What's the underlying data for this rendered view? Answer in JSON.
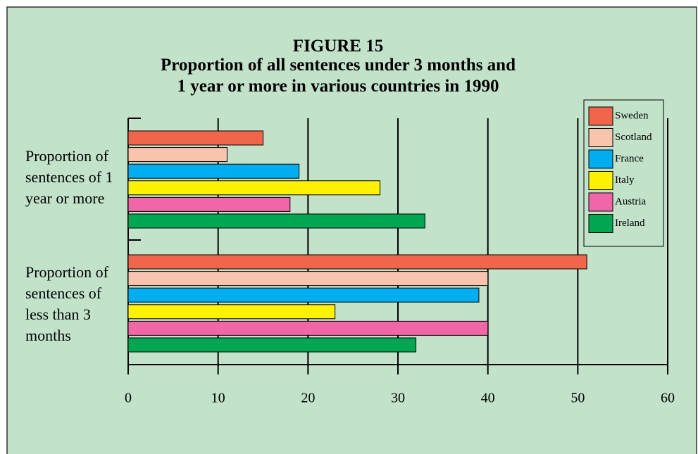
{
  "chart_data": {
    "type": "bar",
    "orientation": "horizontal",
    "title": "FIGURE 15",
    "subtitle": "Proportion of all sentences under 3 months and\n1 year or more in various countries in 1990",
    "categories": [
      "Proportion of\nsentences of 1\nyear or more",
      "Proportion of\nsentences of\nless than 3\nmonths"
    ],
    "series": [
      {
        "name": "Sweden",
        "color": "#f0664a",
        "values": [
          15,
          51
        ]
      },
      {
        "name": "Scotland",
        "color": "#f9c4ae",
        "values": [
          11,
          40
        ]
      },
      {
        "name": "France",
        "color": "#00aeef",
        "values": [
          19,
          39
        ]
      },
      {
        "name": "Italy",
        "color": "#fff200",
        "values": [
          28,
          23
        ]
      },
      {
        "name": "Austria",
        "color": "#f066a6",
        "values": [
          18,
          40
        ]
      },
      {
        "name": "Ireland",
        "color": "#00a651",
        "values": [
          33,
          32
        ]
      }
    ],
    "xlim": [
      0,
      60
    ],
    "xticks": [
      0,
      10,
      20,
      30,
      40,
      50,
      60
    ],
    "grid": true,
    "legend": "top-right"
  }
}
